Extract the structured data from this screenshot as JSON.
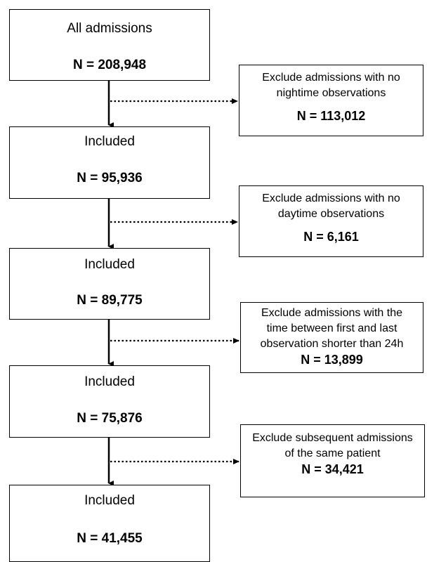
{
  "main_boxes": [
    {
      "label": "All admissions",
      "count": "N = 208,948"
    },
    {
      "label": "Included",
      "count": "N = 95,936"
    },
    {
      "label": "Included",
      "count": "N = 89,775"
    },
    {
      "label": "Included",
      "count": "N = 75,876"
    },
    {
      "label": "Included",
      "count": "N = 41,455"
    }
  ],
  "exclusion_boxes": [
    {
      "lines": [
        "Exclude admissions with no",
        "nightime observations"
      ],
      "count": "N = 113,012"
    },
    {
      "lines": [
        "Exclude admissions with no",
        "daytime observations"
      ],
      "count": "N = 6,161"
    },
    {
      "lines": [
        "Exclude admissions with the",
        "time between first and last",
        "observation shorter than 24h"
      ],
      "count": "N = 13,899"
    },
    {
      "lines": [
        "Exclude subsequent admissions",
        "of the same patient"
      ],
      "count": "N = 34,421"
    }
  ]
}
